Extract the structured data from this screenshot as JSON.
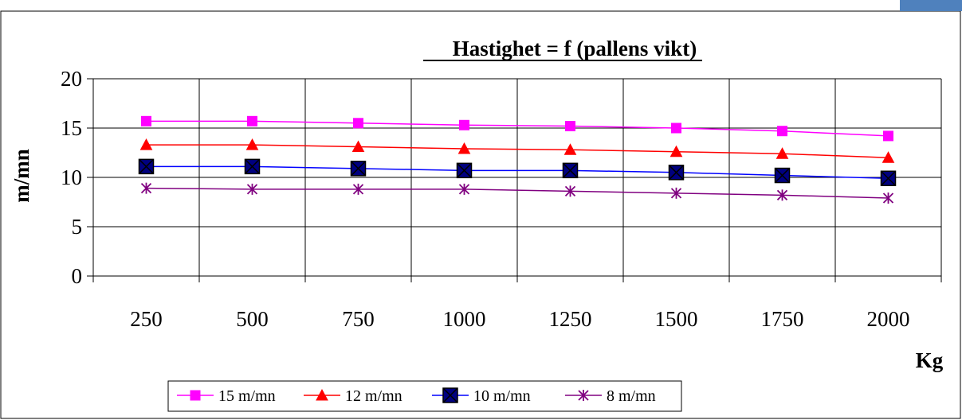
{
  "chart_data": {
    "type": "line",
    "title": "Hastighet = f (pallens vikt)",
    "xlabel": "Kg",
    "ylabel": "m/mn",
    "ylim": [
      0,
      20
    ],
    "yticks": [
      0,
      5,
      10,
      15,
      20
    ],
    "grid": "vertical",
    "legend": "bottom",
    "categories": [
      "250",
      "500",
      "750",
      "1000",
      "1250",
      "1500",
      "1750",
      "2000"
    ],
    "series": [
      {
        "name": "15 m/mn",
        "color": "#ff00ff",
        "marker": "square",
        "values": [
          15.7,
          15.7,
          15.5,
          15.3,
          15.2,
          15.0,
          14.7,
          14.2
        ]
      },
      {
        "name": "12 m/mn",
        "color": "#ff0000",
        "marker": "triangle",
        "values": [
          13.3,
          13.3,
          13.1,
          12.9,
          12.8,
          12.6,
          12.4,
          12.0
        ]
      },
      {
        "name": "10 m/mn",
        "color": "#0000ff",
        "marker": "square-x",
        "values": [
          11.1,
          11.1,
          10.9,
          10.7,
          10.7,
          10.5,
          10.2,
          9.9
        ]
      },
      {
        "name": "8 m/mn",
        "color": "#800080",
        "marker": "star",
        "values": [
          8.9,
          8.8,
          8.8,
          8.8,
          8.6,
          8.4,
          8.2,
          7.9
        ]
      }
    ]
  }
}
